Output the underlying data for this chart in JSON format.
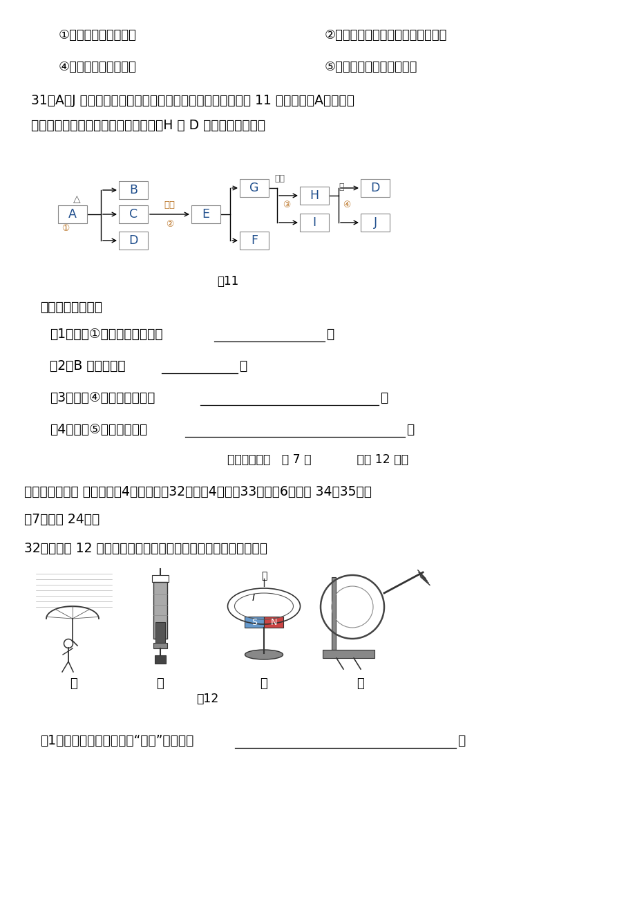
{
  "bg_color": "#ffffff",
  "line1_left": "①氯化钓固体仍然不纯",
  "line1_right": "②称量时码码端忘垄质量相同的纸片",
  "line2_left": "④量取水时，仰视读数",
  "line2_right": "⑤装瓶时，有少量溶液洒出",
  "q31_text1": "31．A～J 是初中化学常见的物质，它们的相互转化关系如图 11 所示。其中A是一种常",
  "q31_text2": "见的化肥，不能与碱性物质混合使用；H 和 D 的组成元素相同。",
  "fig11_label": "图11",
  "questions_header": "请回答下列问题：",
  "q1_text": "（1）反应①的基本反应类型为",
  "q1_end": "。",
  "q2_text": "（2）B 的化学式为",
  "q2_end": "。",
  "q3_text": "（3）反应④的化学方程式为",
  "q3_end": "。",
  "q4_text": "（4）反应⑤的实际应用为",
  "q4_end": "。",
  "page_info": "理科综合试卷   第 7 页            （共 12 页）",
  "section3_header": "三、实验探究题 （本大题兲4个小题；第32小题刂4分，第33小题刂6分，第 34、35小题",
  "section3_cont": "列7分，共 24分）",
  "q32_text": "32．根据图 12 所示的四幅图，在下面的空格处填入相应的内容。",
  "fig12_label": "图12",
  "fig12_cap0": "甲",
  "fig12_cap1": "乙",
  "fig12_cap2": "丙",
  "fig12_cap3": "丁",
  "q32_q1": "（1）甲图：风中雨伞容易“上翻”，是由于",
  "q32_q1_end": "。",
  "label_tongdian": "通电",
  "label_diandian": "点燃",
  "label_wen": "温",
  "label_jie": "接",
  "node_A": "A",
  "node_B": "B",
  "node_C": "C",
  "node_D": "D",
  "node_E": "E",
  "node_F": "F",
  "node_G": "G",
  "node_H": "H",
  "node_I": "I",
  "node_J": "J",
  "label_delta": "△",
  "num1": "①",
  "num2": "②",
  "num3": "③",
  "num4": "④",
  "circle1": "①",
  "circle2": "②",
  "circle3": "③",
  "circle4": "④",
  "S_label": "S",
  "N_label": "N",
  "I_label": "I"
}
